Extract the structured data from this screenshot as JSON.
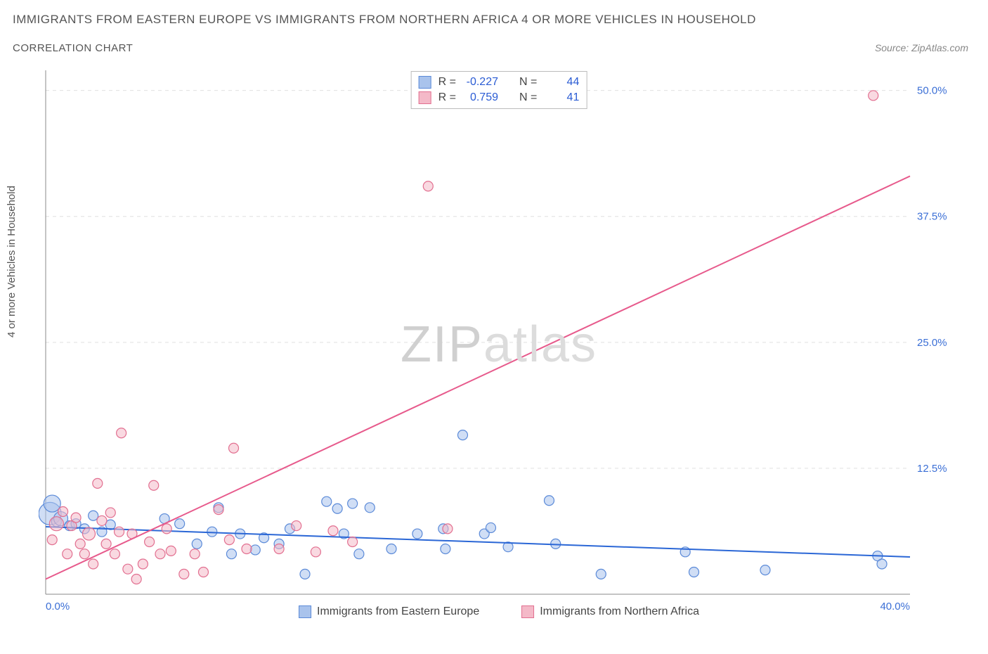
{
  "title": "IMMIGRANTS FROM EASTERN EUROPE VS IMMIGRANTS FROM NORTHERN AFRICA 4 OR MORE VEHICLES IN HOUSEHOLD",
  "subtitle": "CORRELATION CHART",
  "source_label": "Source: ZipAtlas.com",
  "y_axis_label": "4 or more Vehicles in Household",
  "watermark_a": "ZIP",
  "watermark_b": "atlas",
  "chart": {
    "type": "scatter",
    "x_axis": {
      "min": 0,
      "max": 40,
      "ticks": [
        0,
        40
      ],
      "tick_labels": [
        "0.0%",
        "40.0%"
      ],
      "label_color": "#3b6fd6",
      "label_fontsize": 15
    },
    "y_axis": {
      "min": 0,
      "max": 52,
      "grid_values": [
        12.5,
        25,
        37.5,
        50
      ],
      "grid_labels": [
        "12.5%",
        "25.0%",
        "37.5%",
        "50.0%"
      ],
      "label_color": "#3b6fd6",
      "label_fontsize": 15
    },
    "grid_color": "#e0e0e0",
    "axis_line_color": "#888888",
    "background": "#ffffff",
    "series": [
      {
        "name": "Immigrants from Eastern Europe",
        "marker_fill": "#a9c3ec",
        "marker_stroke": "#5b8ad8",
        "fill_opacity": 0.55,
        "trend": {
          "slope": -0.075,
          "intercept": 6.7,
          "line_color": "#2b67d6",
          "line_width": 2
        },
        "stats": {
          "R": "-0.227",
          "N": "44"
        },
        "points": [
          {
            "x": 0.2,
            "y": 8.0,
            "r": 16
          },
          {
            "x": 0.3,
            "y": 9.0,
            "r": 12
          },
          {
            "x": 0.5,
            "y": 7.2,
            "r": 7
          },
          {
            "x": 0.7,
            "y": 7.5,
            "r": 10
          },
          {
            "x": 1.1,
            "y": 6.8,
            "r": 7
          },
          {
            "x": 1.4,
            "y": 7.0,
            "r": 7
          },
          {
            "x": 1.8,
            "y": 6.5,
            "r": 7
          },
          {
            "x": 2.2,
            "y": 7.8,
            "r": 7
          },
          {
            "x": 2.6,
            "y": 6.2,
            "r": 7
          },
          {
            "x": 3.0,
            "y": 6.9,
            "r": 7
          },
          {
            "x": 5.5,
            "y": 7.5,
            "r": 7
          },
          {
            "x": 6.2,
            "y": 7.0,
            "r": 7
          },
          {
            "x": 7.0,
            "y": 5.0,
            "r": 7
          },
          {
            "x": 7.7,
            "y": 6.2,
            "r": 7
          },
          {
            "x": 8.0,
            "y": 8.6,
            "r": 7
          },
          {
            "x": 8.6,
            "y": 4.0,
            "r": 7
          },
          {
            "x": 9.0,
            "y": 6.0,
            "r": 7
          },
          {
            "x": 9.7,
            "y": 4.4,
            "r": 7
          },
          {
            "x": 10.1,
            "y": 5.6,
            "r": 7
          },
          {
            "x": 10.8,
            "y": 5.0,
            "r": 7
          },
          {
            "x": 11.3,
            "y": 6.5,
            "r": 7
          },
          {
            "x": 12.0,
            "y": 2.0,
            "r": 7
          },
          {
            "x": 13.0,
            "y": 9.2,
            "r": 7
          },
          {
            "x": 13.5,
            "y": 8.5,
            "r": 7
          },
          {
            "x": 13.8,
            "y": 6.0,
            "r": 7
          },
          {
            "x": 14.2,
            "y": 9.0,
            "r": 7
          },
          {
            "x": 14.5,
            "y": 4.0,
            "r": 7
          },
          {
            "x": 15.0,
            "y": 8.6,
            "r": 7
          },
          {
            "x": 16.0,
            "y": 4.5,
            "r": 7
          },
          {
            "x": 17.2,
            "y": 6.0,
            "r": 7
          },
          {
            "x": 18.4,
            "y": 6.5,
            "r": 7
          },
          {
            "x": 18.5,
            "y": 4.5,
            "r": 7
          },
          {
            "x": 19.3,
            "y": 15.8,
            "r": 7
          },
          {
            "x": 20.3,
            "y": 6.0,
            "r": 7
          },
          {
            "x": 20.6,
            "y": 6.6,
            "r": 7
          },
          {
            "x": 21.4,
            "y": 4.7,
            "r": 7
          },
          {
            "x": 23.3,
            "y": 9.3,
            "r": 7
          },
          {
            "x": 23.6,
            "y": 5.0,
            "r": 7
          },
          {
            "x": 25.7,
            "y": 2.0,
            "r": 7
          },
          {
            "x": 29.6,
            "y": 4.2,
            "r": 7
          },
          {
            "x": 30.0,
            "y": 2.2,
            "r": 7
          },
          {
            "x": 33.3,
            "y": 2.4,
            "r": 7
          },
          {
            "x": 38.5,
            "y": 3.8,
            "r": 7
          },
          {
            "x": 38.7,
            "y": 3.0,
            "r": 7
          }
        ]
      },
      {
        "name": "Immigrants from Northern Africa",
        "marker_fill": "#f4b9c8",
        "marker_stroke": "#e26f90",
        "fill_opacity": 0.55,
        "trend": {
          "slope": 1.0,
          "intercept": 1.5,
          "line_color": "#e75a8c",
          "line_width": 2
        },
        "stats": {
          "R": "0.759",
          "N": "41"
        },
        "points": [
          {
            "x": 0.3,
            "y": 5.4,
            "r": 7
          },
          {
            "x": 0.5,
            "y": 7.0,
            "r": 10
          },
          {
            "x": 0.8,
            "y": 8.2,
            "r": 7
          },
          {
            "x": 1.0,
            "y": 4.0,
            "r": 7
          },
          {
            "x": 1.2,
            "y": 6.8,
            "r": 7
          },
          {
            "x": 1.4,
            "y": 7.6,
            "r": 7
          },
          {
            "x": 1.6,
            "y": 5.0,
            "r": 7
          },
          {
            "x": 1.8,
            "y": 4.0,
            "r": 7
          },
          {
            "x": 2.0,
            "y": 6.0,
            "r": 9
          },
          {
            "x": 2.2,
            "y": 3.0,
            "r": 7
          },
          {
            "x": 2.4,
            "y": 11.0,
            "r": 7
          },
          {
            "x": 2.6,
            "y": 7.3,
            "r": 7
          },
          {
            "x": 2.8,
            "y": 5.0,
            "r": 7
          },
          {
            "x": 3.0,
            "y": 8.1,
            "r": 7
          },
          {
            "x": 3.2,
            "y": 4.0,
            "r": 7
          },
          {
            "x": 3.4,
            "y": 6.2,
            "r": 7
          },
          {
            "x": 3.5,
            "y": 16.0,
            "r": 7
          },
          {
            "x": 3.8,
            "y": 2.5,
            "r": 7
          },
          {
            "x": 4.0,
            "y": 6.0,
            "r": 7
          },
          {
            "x": 4.2,
            "y": 1.5,
            "r": 7
          },
          {
            "x": 4.5,
            "y": 3.0,
            "r": 7
          },
          {
            "x": 4.8,
            "y": 5.2,
            "r": 7
          },
          {
            "x": 5.0,
            "y": 10.8,
            "r": 7
          },
          {
            "x": 5.3,
            "y": 4.0,
            "r": 7
          },
          {
            "x": 5.6,
            "y": 6.5,
            "r": 7
          },
          {
            "x": 5.8,
            "y": 4.3,
            "r": 7
          },
          {
            "x": 6.4,
            "y": 2.0,
            "r": 7
          },
          {
            "x": 6.9,
            "y": 4.0,
            "r": 7
          },
          {
            "x": 7.3,
            "y": 2.2,
            "r": 7
          },
          {
            "x": 8.0,
            "y": 8.4,
            "r": 7
          },
          {
            "x": 8.5,
            "y": 5.4,
            "r": 7
          },
          {
            "x": 8.7,
            "y": 14.5,
            "r": 7
          },
          {
            "x": 9.3,
            "y": 4.5,
            "r": 7
          },
          {
            "x": 10.8,
            "y": 4.5,
            "r": 7
          },
          {
            "x": 11.6,
            "y": 6.8,
            "r": 7
          },
          {
            "x": 12.5,
            "y": 4.2,
            "r": 7
          },
          {
            "x": 13.3,
            "y": 6.3,
            "r": 7
          },
          {
            "x": 14.2,
            "y": 5.2,
            "r": 7
          },
          {
            "x": 17.7,
            "y": 40.5,
            "r": 7
          },
          {
            "x": 18.6,
            "y": 6.5,
            "r": 7
          },
          {
            "x": 38.3,
            "y": 49.5,
            "r": 7
          }
        ]
      }
    ]
  },
  "legend": {
    "stats_labels": {
      "R": "R =",
      "N": "N ="
    }
  }
}
